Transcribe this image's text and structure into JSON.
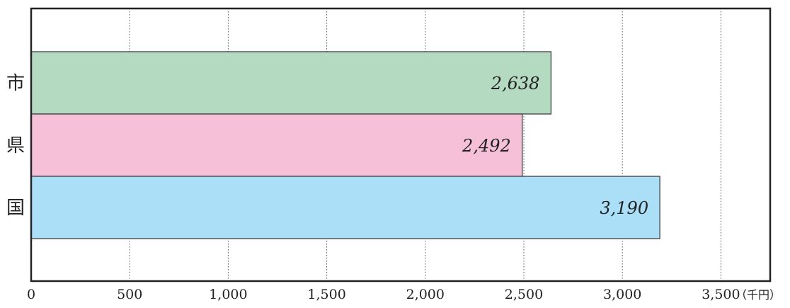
{
  "chart_data": {
    "type": "bar",
    "orientation": "horizontal",
    "title": "",
    "xlabel": "",
    "ylabel": "",
    "unit": "（千円）",
    "categories": [
      "市",
      "県",
      "国"
    ],
    "values": [
      2638,
      2492,
      3190
    ],
    "value_labels": [
      "2,638",
      "2,492",
      "3,190"
    ],
    "xlim": [
      0,
      3750
    ],
    "x_ticks": [
      0,
      500,
      1000,
      1500,
      2000,
      2500,
      3000,
      3500
    ],
    "x_tick_labels": [
      "0",
      "500",
      "1,000",
      "1,500",
      "2,000",
      "2,500",
      "3,000",
      "3,500"
    ],
    "grid": "vertical dotted",
    "legend": "none",
    "colors": [
      "#b4dbc2",
      "#f6c0d8",
      "#aadff7"
    ]
  }
}
